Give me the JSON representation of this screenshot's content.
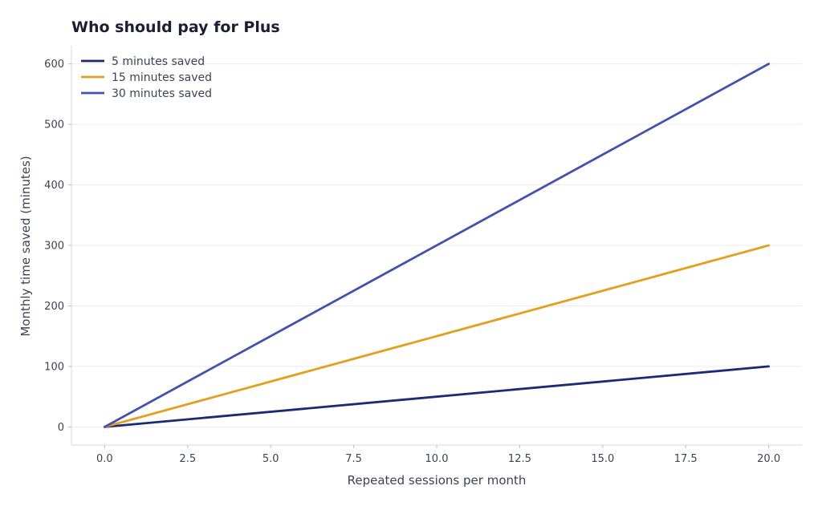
{
  "chart_data": {
    "type": "line",
    "title": "Who should pay for Plus",
    "xlabel": "Repeated sessions per month",
    "ylabel": "Monthly time saved (minutes)",
    "xlim": [
      -1,
      21
    ],
    "ylim": [
      -30,
      630
    ],
    "x_ticks": [
      0,
      2.5,
      5,
      7.5,
      10,
      12.5,
      15,
      17.5,
      20
    ],
    "x_tick_labels": [
      "0.0",
      "2.5",
      "5.0",
      "7.5",
      "10.0",
      "12.5",
      "15.0",
      "17.5",
      "20.0"
    ],
    "y_ticks": [
      0,
      100,
      200,
      300,
      400,
      500,
      600
    ],
    "y_tick_labels": [
      "0",
      "100",
      "200",
      "300",
      "400",
      "500",
      "600"
    ],
    "grid": "horizontal",
    "legend_position": "top-left",
    "series": [
      {
        "name": "5 minutes saved",
        "color": "#1c2878",
        "x": [
          0,
          20
        ],
        "y": [
          0,
          100
        ]
      },
      {
        "name": "15 minutes saved",
        "color": "#e2a01e",
        "x": [
          0,
          20
        ],
        "y": [
          0,
          300
        ]
      },
      {
        "name": "30 minutes saved",
        "color": "#4352ad",
        "x": [
          0,
          20
        ],
        "y": [
          0,
          600
        ]
      }
    ]
  }
}
